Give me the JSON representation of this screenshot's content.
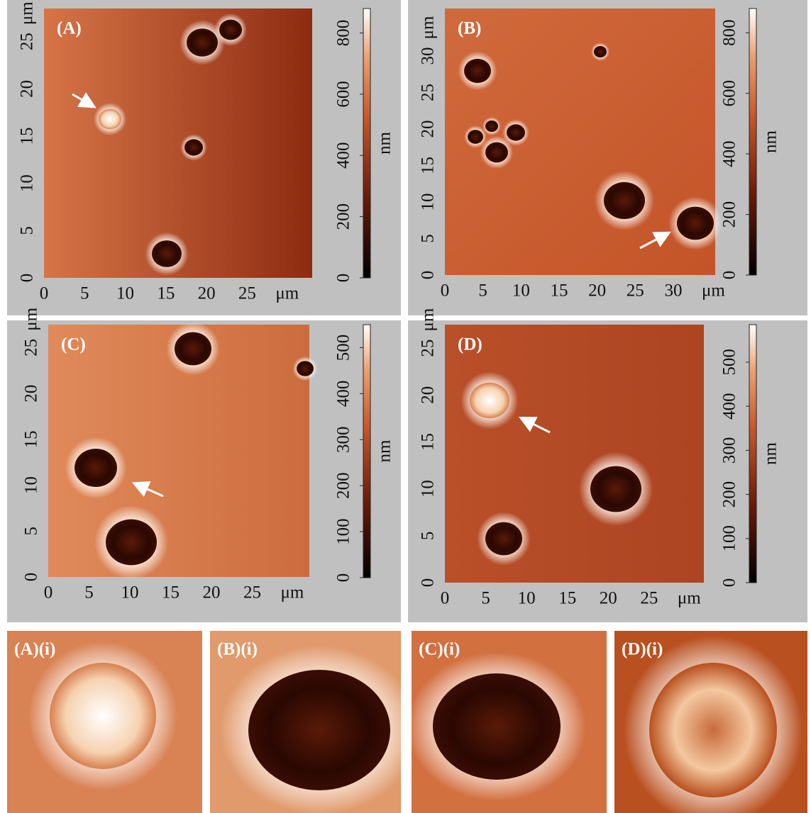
{
  "panels": [
    {
      "label": "(A)",
      "x_unit": "μm",
      "y_unit": "μm",
      "xlim": [
        0,
        33
      ],
      "ylim": [
        0,
        28.5
      ],
      "xticks": [
        0,
        5,
        10,
        15,
        20,
        25
      ],
      "yticks": [
        0,
        5,
        10,
        15,
        20,
        25
      ],
      "colorbar_lim": [
        0,
        880
      ],
      "colorbar_ticks": [
        0,
        200,
        400,
        600,
        800
      ],
      "colorbar_unit": "nm"
    },
    {
      "label": "(B)",
      "x_unit": "μm",
      "y_unit": "μm",
      "xlim": [
        0,
        35.5
      ],
      "ylim": [
        0,
        36.5
      ],
      "xticks": [
        0,
        5,
        10,
        15,
        20,
        25,
        30
      ],
      "yticks": [
        0,
        5,
        10,
        15,
        20,
        25,
        30
      ],
      "colorbar_lim": [
        0,
        880
      ],
      "colorbar_ticks": [
        0,
        200,
        400,
        600,
        800
      ],
      "colorbar_unit": "nm"
    },
    {
      "label": "(C)",
      "x_unit": "μm",
      "y_unit": "μm",
      "xlim": [
        0,
        32
      ],
      "ylim": [
        0,
        27.5
      ],
      "xticks": [
        0,
        5,
        10,
        15,
        20,
        25
      ],
      "yticks": [
        0,
        5,
        10,
        15,
        20,
        25
      ],
      "colorbar_lim": [
        0,
        550
      ],
      "colorbar_ticks": [
        0,
        100,
        200,
        300,
        400,
        500
      ],
      "colorbar_unit": "nm"
    },
    {
      "label": "(D)",
      "x_unit": "μm",
      "y_unit": "μm",
      "xlim": [
        0,
        31.7
      ],
      "ylim": [
        0,
        27.5
      ],
      "xticks": [
        0,
        5,
        10,
        15,
        20,
        25
      ],
      "yticks": [
        0,
        5,
        10,
        15,
        20,
        25
      ],
      "colorbar_lim": [
        0,
        585
      ],
      "colorbar_ticks": [
        0,
        100,
        200,
        300,
        400,
        500
      ],
      "colorbar_unit": "nm"
    }
  ],
  "insets": [
    {
      "label": "(A)(i)"
    },
    {
      "label": "(B)(i)"
    },
    {
      "label": "(C)(i)"
    },
    {
      "label": "(D)(i)"
    }
  ]
}
